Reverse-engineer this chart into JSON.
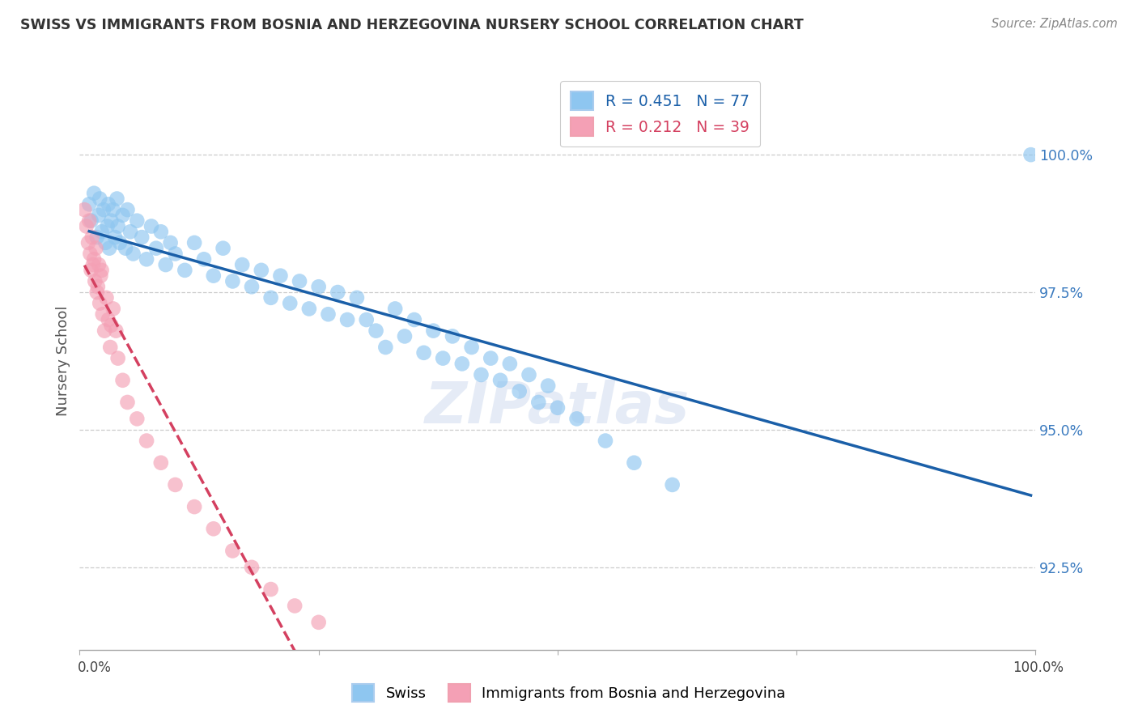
{
  "title": "SWISS VS IMMIGRANTS FROM BOSNIA AND HERZEGOVINA NURSERY SCHOOL CORRELATION CHART",
  "source": "Source: ZipAtlas.com",
  "ylabel": "Nursery School",
  "yticks": [
    92.5,
    95.0,
    97.5,
    100.0
  ],
  "ytick_labels": [
    "92.5%",
    "95.0%",
    "97.5%",
    "100.0%"
  ],
  "xlim": [
    0.0,
    100.0
  ],
  "ylim": [
    91.0,
    101.5
  ],
  "legend_swiss": "Swiss",
  "legend_bih": "Immigrants from Bosnia and Herzegovina",
  "r_swiss": 0.451,
  "n_swiss": 77,
  "r_bih": 0.212,
  "n_bih": 39,
  "color_swiss": "#8ec6f0",
  "color_bih": "#f4a0b5",
  "trendline_color_swiss": "#1a5fa8",
  "trendline_color_bih": "#d44060",
  "swiss_x": [
    1.0,
    1.2,
    1.5,
    1.8,
    2.0,
    2.1,
    2.3,
    2.5,
    2.7,
    2.9,
    3.0,
    3.1,
    3.3,
    3.5,
    3.7,
    3.9,
    4.0,
    4.2,
    4.5,
    4.8,
    5.0,
    5.3,
    5.6,
    6.0,
    6.5,
    7.0,
    7.5,
    8.0,
    8.5,
    9.0,
    9.5,
    10.0,
    11.0,
    12.0,
    13.0,
    14.0,
    15.0,
    16.0,
    17.0,
    18.0,
    19.0,
    20.0,
    21.0,
    22.0,
    23.0,
    24.0,
    25.0,
    26.0,
    27.0,
    28.0,
    29.0,
    30.0,
    31.0,
    32.0,
    33.0,
    34.0,
    35.0,
    36.0,
    37.0,
    38.0,
    39.0,
    40.0,
    41.0,
    42.0,
    43.0,
    44.0,
    45.0,
    46.0,
    47.0,
    48.0,
    49.0,
    50.0,
    52.0,
    55.0,
    58.0,
    62.0,
    99.5
  ],
  "swiss_y": [
    99.1,
    98.8,
    99.3,
    98.5,
    98.9,
    99.2,
    98.6,
    99.0,
    98.4,
    98.7,
    99.1,
    98.3,
    98.8,
    99.0,
    98.5,
    99.2,
    98.7,
    98.4,
    98.9,
    98.3,
    99.0,
    98.6,
    98.2,
    98.8,
    98.5,
    98.1,
    98.7,
    98.3,
    98.6,
    98.0,
    98.4,
    98.2,
    97.9,
    98.4,
    98.1,
    97.8,
    98.3,
    97.7,
    98.0,
    97.6,
    97.9,
    97.4,
    97.8,
    97.3,
    97.7,
    97.2,
    97.6,
    97.1,
    97.5,
    97.0,
    97.4,
    97.0,
    96.8,
    96.5,
    97.2,
    96.7,
    97.0,
    96.4,
    96.8,
    96.3,
    96.7,
    96.2,
    96.5,
    96.0,
    96.3,
    95.9,
    96.2,
    95.7,
    96.0,
    95.5,
    95.8,
    95.4,
    95.2,
    94.8,
    94.4,
    94.0,
    100.0
  ],
  "bih_x": [
    0.5,
    0.7,
    0.9,
    1.0,
    1.1,
    1.2,
    1.3,
    1.5,
    1.6,
    1.7,
    1.8,
    2.0,
    2.1,
    2.2,
    2.4,
    2.6,
    2.8,
    3.0,
    3.2,
    3.5,
    3.8,
    4.0,
    4.5,
    5.0,
    6.0,
    7.0,
    8.5,
    10.0,
    12.0,
    14.0,
    16.0,
    18.0,
    20.0,
    22.5,
    25.0,
    1.4,
    1.9,
    2.3,
    3.3
  ],
  "bih_y": [
    99.0,
    98.7,
    98.4,
    98.8,
    98.2,
    97.9,
    98.5,
    98.1,
    97.7,
    98.3,
    97.5,
    98.0,
    97.3,
    97.8,
    97.1,
    96.8,
    97.4,
    97.0,
    96.5,
    97.2,
    96.8,
    96.3,
    95.9,
    95.5,
    95.2,
    94.8,
    94.4,
    94.0,
    93.6,
    93.2,
    92.8,
    92.5,
    92.1,
    91.8,
    91.5,
    98.0,
    97.6,
    97.9,
    96.9
  ]
}
